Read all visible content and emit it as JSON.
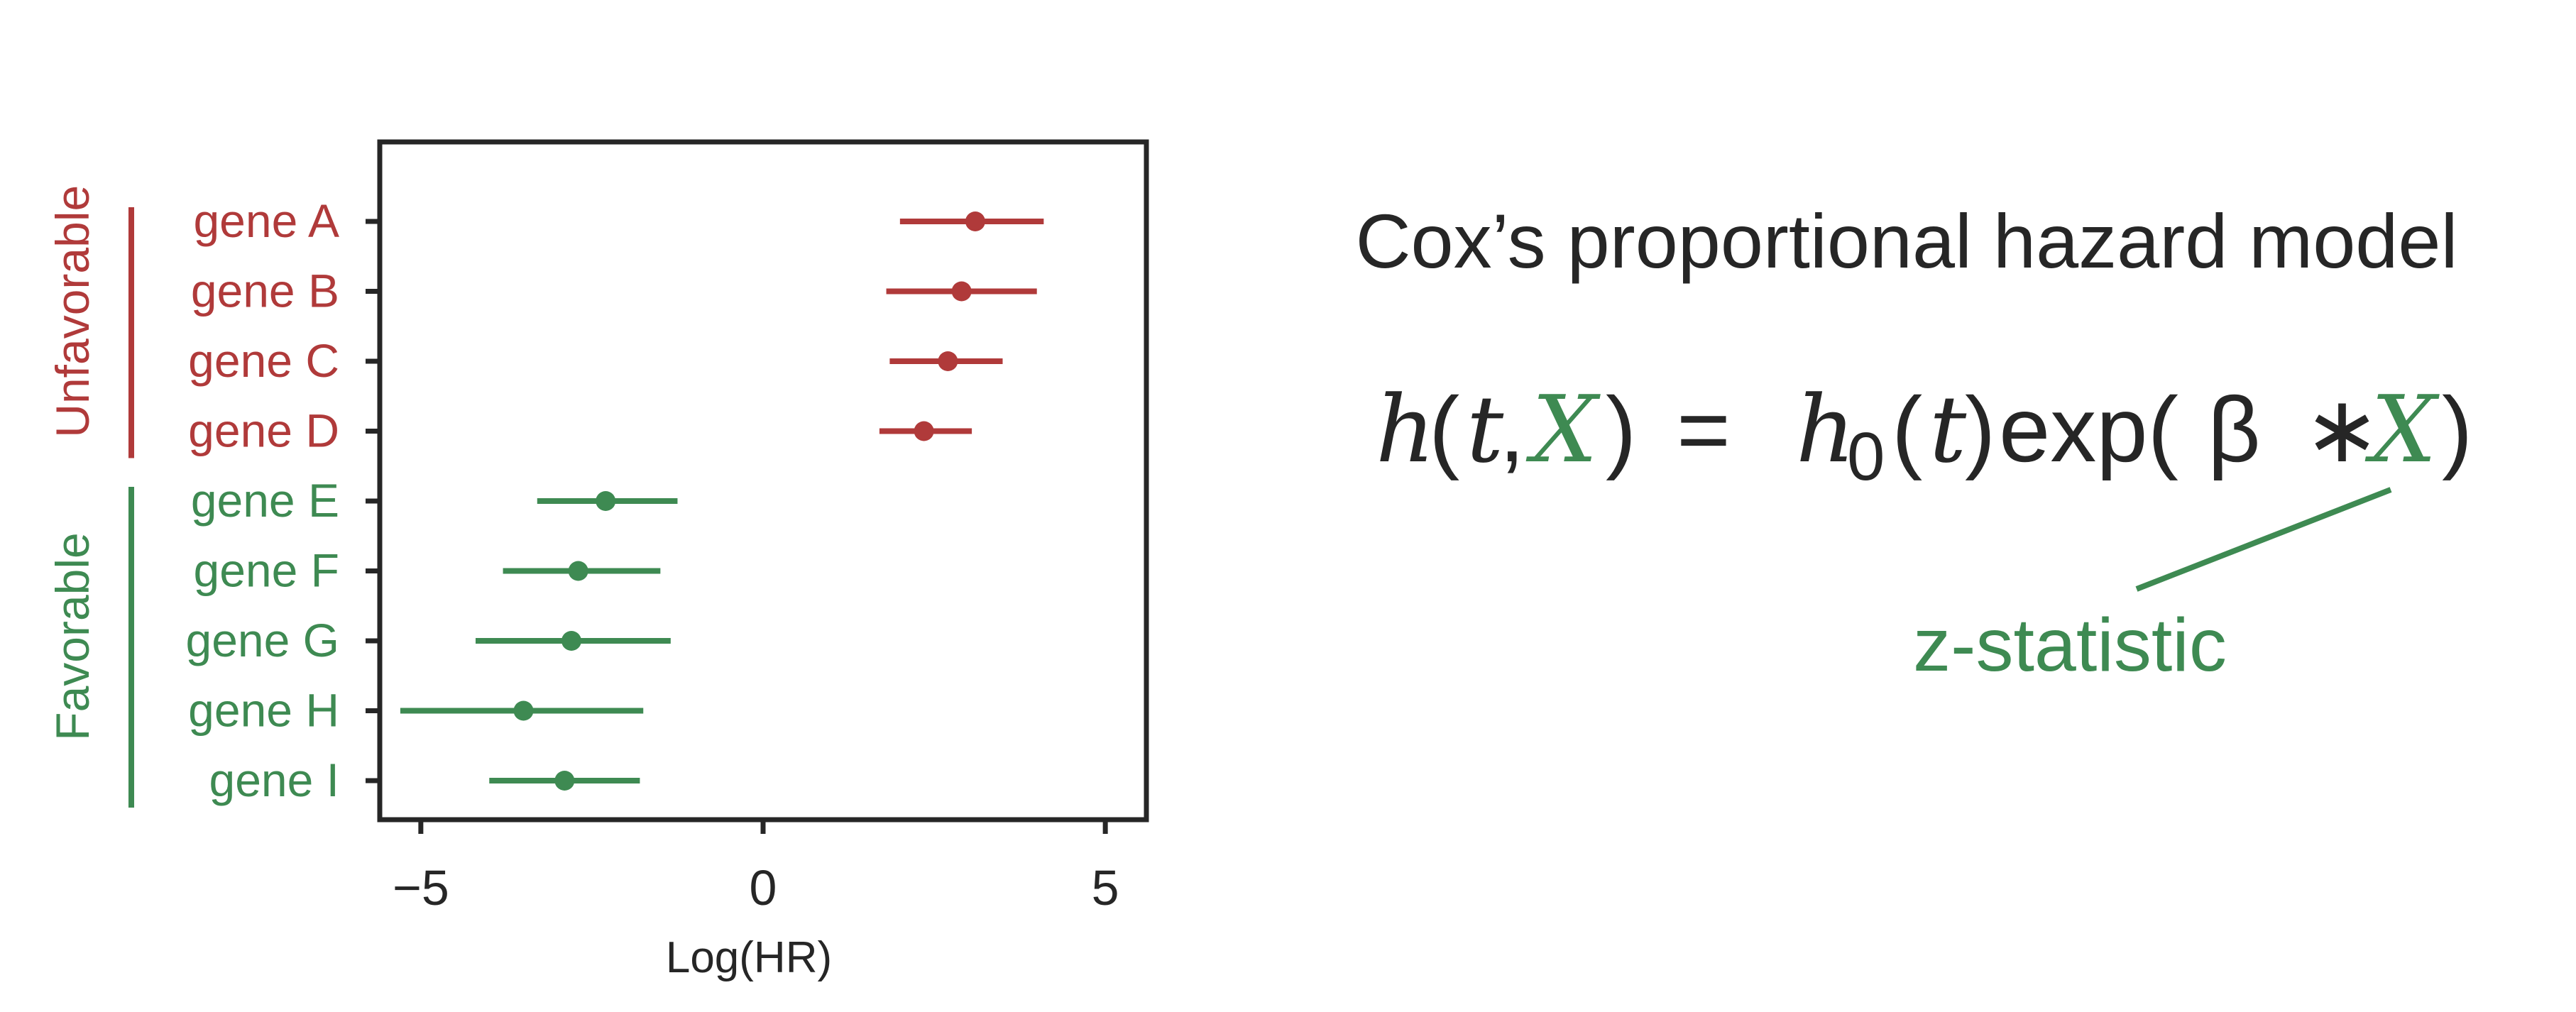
{
  "colors": {
    "unfavorable": "#b03a3a",
    "favorable": "#3e8a52",
    "text": "#262626",
    "axis": "#262626"
  },
  "chart_data": {
    "type": "scatter",
    "subtype": "forest-plot",
    "xlabel": "Log(HR)",
    "ylabel": "",
    "xlim": [
      -5.6,
      5.6
    ],
    "xticks": [
      -5,
      0,
      5
    ],
    "xtick_labels": [
      "−5",
      "0",
      "5"
    ],
    "grid": false,
    "groups": [
      {
        "name": "Unfavorable",
        "color_key": "unfavorable",
        "genes": [
          "gene A",
          "gene B",
          "gene C",
          "gene D"
        ]
      },
      {
        "name": "Favorable",
        "color_key": "favorable",
        "genes": [
          "gene E",
          "gene F",
          "gene G",
          "gene H",
          "gene I"
        ]
      }
    ],
    "points": [
      {
        "label": "gene A",
        "group": "Unfavorable",
        "x": 3.1,
        "low": 2.0,
        "high": 4.1
      },
      {
        "label": "gene B",
        "group": "Unfavorable",
        "x": 2.9,
        "low": 1.8,
        "high": 4.0
      },
      {
        "label": "gene C",
        "group": "Unfavorable",
        "x": 2.7,
        "low": 1.85,
        "high": 3.5
      },
      {
        "label": "gene D",
        "group": "Unfavorable",
        "x": 2.35,
        "low": 1.7,
        "high": 3.05
      },
      {
        "label": "gene E",
        "group": "Favorable",
        "x": -2.3,
        "low": -3.3,
        "high": -1.25
      },
      {
        "label": "gene F",
        "group": "Favorable",
        "x": -2.7,
        "low": -3.8,
        "high": -1.5
      },
      {
        "label": "gene G",
        "group": "Favorable",
        "x": -2.8,
        "low": -4.2,
        "high": -1.35
      },
      {
        "label": "gene H",
        "group": "Favorable",
        "x": -3.5,
        "low": -5.3,
        "high": -1.75
      },
      {
        "label": "gene I",
        "group": "Favorable",
        "x": -2.9,
        "low": -4.0,
        "high": -1.8
      }
    ]
  },
  "model": {
    "title": "Cox’s proportional hazard model",
    "eq": {
      "h": "h",
      "open_paren": "(",
      "t": "t",
      "comma": ",",
      "X": "X",
      "close_paren": ")",
      "equals": "=",
      "h0": "h",
      "h0_sub": "0",
      "t_paren_open": "(",
      "t2": "t",
      "t_paren_close": ")",
      "exp": "exp(",
      "beta": "β",
      "times": "∗",
      "X2": "X",
      "final_paren": ")"
    },
    "annotation": "z-statistic"
  }
}
